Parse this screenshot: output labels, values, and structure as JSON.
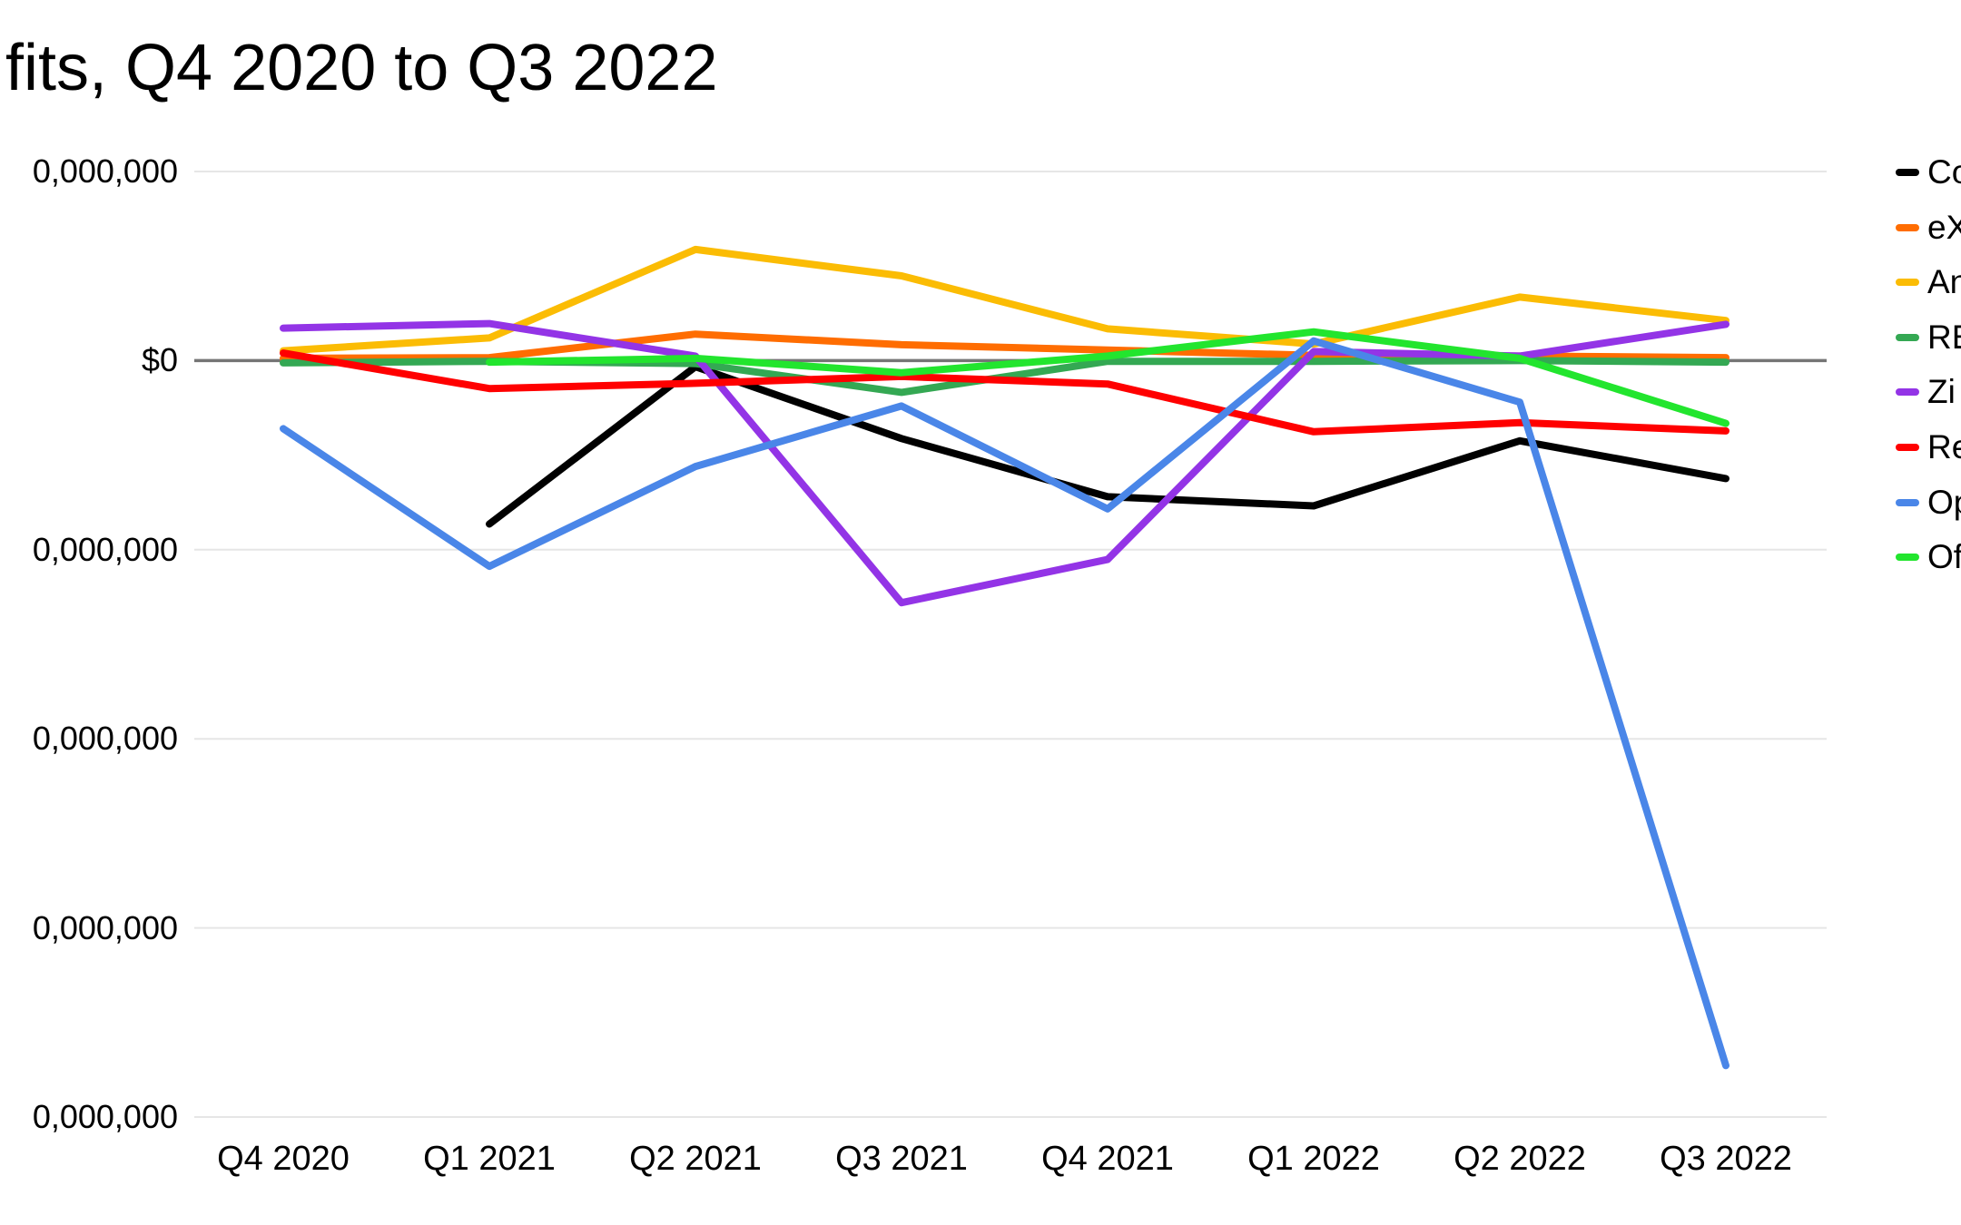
{
  "title": {
    "text_visible": "fits, Q4 2020 to Q3 2022"
  },
  "chart_data": {
    "type": "line",
    "title_visible": "fits, Q4 2020 to Q3 2022",
    "categories": [
      "Q4 2020",
      "Q1 2021",
      "Q2 2021",
      "Q3 2021",
      "Q4 2021",
      "Q1 2022",
      "Q2 2022",
      "Q3 2022"
    ],
    "value_unit": "USD, read from axis; millions used below",
    "ylim_musd": [
      -1000,
      250
    ],
    "grid": true,
    "legend_position": "right",
    "y_ticks": [
      {
        "value_musd": 250,
        "label_visible": "0,000,000"
      },
      {
        "value_musd": 0,
        "label_visible": "$0"
      },
      {
        "value_musd": -250,
        "label_visible": "0,000,000"
      },
      {
        "value_musd": -500,
        "label_visible": "0,000,000"
      },
      {
        "value_musd": -750,
        "label_visible": "0,000,000"
      },
      {
        "value_musd": -1000,
        "label_visible": "0,000,000"
      }
    ],
    "axis_colors": {
      "gridline": "#e6e6e6",
      "zero_line": "#757575"
    },
    "series": [
      {
        "label_visible": "Co",
        "color": "#000000",
        "values_musd": [
          null,
          -216,
          -8,
          -103,
          -180,
          -192,
          -106,
          -156
        ]
      },
      {
        "label_visible": "eX",
        "color": "#ff6d01",
        "values_musd": [
          3,
          4,
          35,
          21,
          14,
          7,
          6,
          4
        ]
      },
      {
        "label_visible": "An",
        "color": "#fbbc04",
        "values_musd": [
          13,
          30,
          147,
          112,
          42,
          22,
          84,
          53
        ]
      },
      {
        "label_visible": "RE",
        "color": "#34a853",
        "values_musd": [
          -3,
          -1,
          -4,
          -42,
          -1,
          -1,
          0,
          -2
        ]
      },
      {
        "label_visible": "Zi",
        "color": "#9334e6",
        "values_musd": [
          43,
          49,
          6,
          -320,
          -263,
          12,
          6,
          48
        ]
      },
      {
        "label_visible": "Re",
        "color": "#ff0000",
        "values_musd": [
          10,
          -37,
          -30,
          -21,
          -31,
          -94,
          -82,
          -93
        ]
      },
      {
        "label_visible": "Op",
        "color": "#4a86e8",
        "values_musd": [
          -90,
          -272,
          -140,
          -60,
          -196,
          26,
          -55,
          -932
        ]
      },
      {
        "label_visible": "Of",
        "color": "#22e52e",
        "values_musd": [
          null,
          -2,
          3,
          -16,
          6,
          38,
          3,
          -83
        ]
      }
    ]
  }
}
